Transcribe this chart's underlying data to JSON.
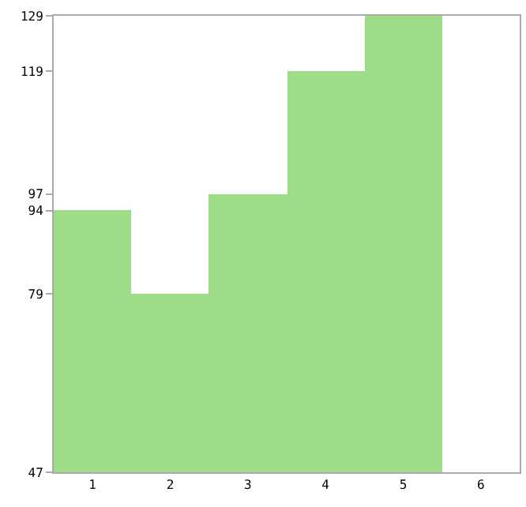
{
  "chart_data": {
    "type": "bar",
    "categories": [
      "1",
      "2",
      "3",
      "4",
      "5",
      "6"
    ],
    "values": [
      94,
      79,
      97,
      119,
      129,
      47
    ],
    "color": "#9edc88",
    "ylim": [
      47,
      129
    ],
    "yticks": [
      47,
      79,
      94,
      97,
      119,
      129
    ],
    "legend": false
  }
}
